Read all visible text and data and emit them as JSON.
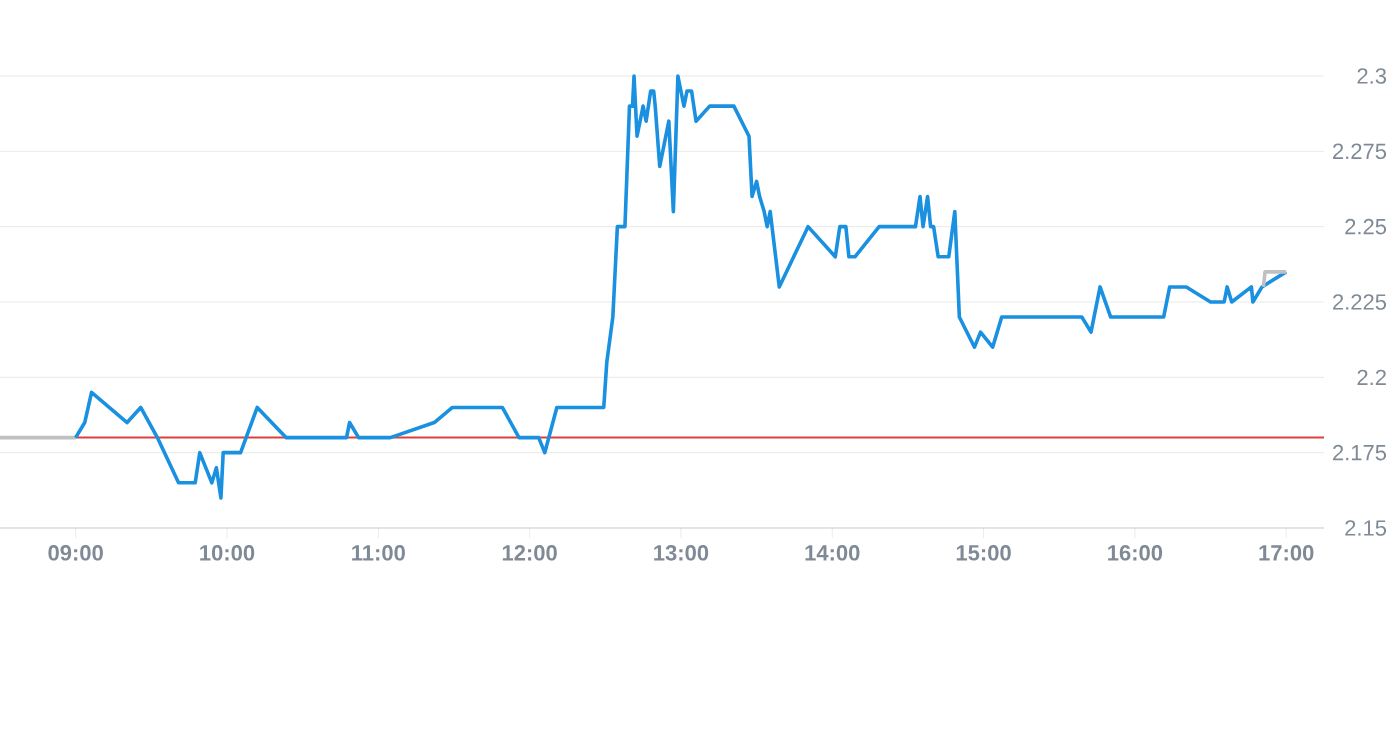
{
  "chart_data": {
    "type": "line",
    "xlim": [
      8.5,
      17.25
    ],
    "ylim": [
      2.15,
      2.3
    ],
    "xticks": [
      {
        "value": 9,
        "label": "09:00"
      },
      {
        "value": 10,
        "label": "10:00"
      },
      {
        "value": 11,
        "label": "11:00"
      },
      {
        "value": 12,
        "label": "12:00"
      },
      {
        "value": 13,
        "label": "13:00"
      },
      {
        "value": 14,
        "label": "14:00"
      },
      {
        "value": 15,
        "label": "15:00"
      },
      {
        "value": 16,
        "label": "16:00"
      },
      {
        "value": 17,
        "label": "17:00"
      }
    ],
    "yticks": [
      2.15,
      2.175,
      2.2,
      2.225,
      2.25,
      2.275,
      2.3
    ],
    "grid": "y",
    "ref_lines": [
      {
        "axis": "y",
        "value": 2.18,
        "color": "#d9413a"
      }
    ],
    "series": [
      {
        "color": "#c0c0c0",
        "x": [
          8.5,
          9.0
        ],
        "values": [
          2.18,
          2.18
        ]
      },
      {
        "color": "#1a90e0",
        "x": [
          9.0,
          9.06,
          9.105,
          9.34,
          9.43,
          9.54,
          9.68,
          9.79,
          9.82,
          9.9,
          9.93,
          9.96,
          9.975,
          10.09,
          10.2,
          10.39,
          10.79,
          10.81,
          10.87,
          11.08,
          11.37,
          11.49,
          11.82,
          11.93,
          12.06,
          12.1,
          12.18,
          12.49,
          12.51,
          12.55,
          12.58,
          12.63,
          12.66,
          12.68,
          12.69,
          12.71,
          12.75,
          12.77,
          12.8,
          12.82,
          12.83,
          12.86,
          12.92,
          12.95,
          12.98,
          13.02,
          13.04,
          13.07,
          13.1,
          13.19,
          13.35,
          13.45,
          13.47,
          13.5,
          13.52,
          13.55,
          13.57,
          13.59,
          13.65,
          13.84,
          14.02,
          14.05,
          14.09,
          14.11,
          14.15,
          14.31,
          14.55,
          14.58,
          14.6,
          14.63,
          14.65,
          14.67,
          14.7,
          14.77,
          14.81,
          14.84,
          14.94,
          14.98,
          15.06,
          15.12,
          15.65,
          15.71,
          15.77,
          15.84,
          16.19,
          16.23,
          16.34,
          16.5,
          16.59,
          16.61,
          16.64,
          16.77,
          16.78,
          16.84,
          17.0
        ],
        "values": [
          2.18,
          2.185,
          2.195,
          2.185,
          2.19,
          2.18,
          2.165,
          2.165,
          2.175,
          2.165,
          2.17,
          2.16,
          2.175,
          2.175,
          2.19,
          2.18,
          2.18,
          2.185,
          2.18,
          2.18,
          2.185,
          2.19,
          2.19,
          2.18,
          2.18,
          2.175,
          2.19,
          2.19,
          2.205,
          2.22,
          2.25,
          2.25,
          2.29,
          2.29,
          2.3,
          2.28,
          2.29,
          2.285,
          2.295,
          2.295,
          2.29,
          2.27,
          2.285,
          2.255,
          2.3,
          2.29,
          2.295,
          2.295,
          2.285,
          2.29,
          2.29,
          2.28,
          2.26,
          2.265,
          2.26,
          2.255,
          2.25,
          2.255,
          2.23,
          2.25,
          2.24,
          2.25,
          2.25,
          2.24,
          2.24,
          2.25,
          2.25,
          2.26,
          2.25,
          2.26,
          2.25,
          2.25,
          2.24,
          2.24,
          2.255,
          2.22,
          2.21,
          2.215,
          2.21,
          2.22,
          2.22,
          2.215,
          2.23,
          2.22,
          2.22,
          2.23,
          2.23,
          2.225,
          2.225,
          2.23,
          2.225,
          2.23,
          2.225,
          2.23,
          2.235
        ]
      },
      {
        "color": "#c0c0c0",
        "x": [
          16.85,
          16.86,
          17.0
        ],
        "values": [
          2.23,
          2.235,
          2.235
        ]
      }
    ]
  }
}
